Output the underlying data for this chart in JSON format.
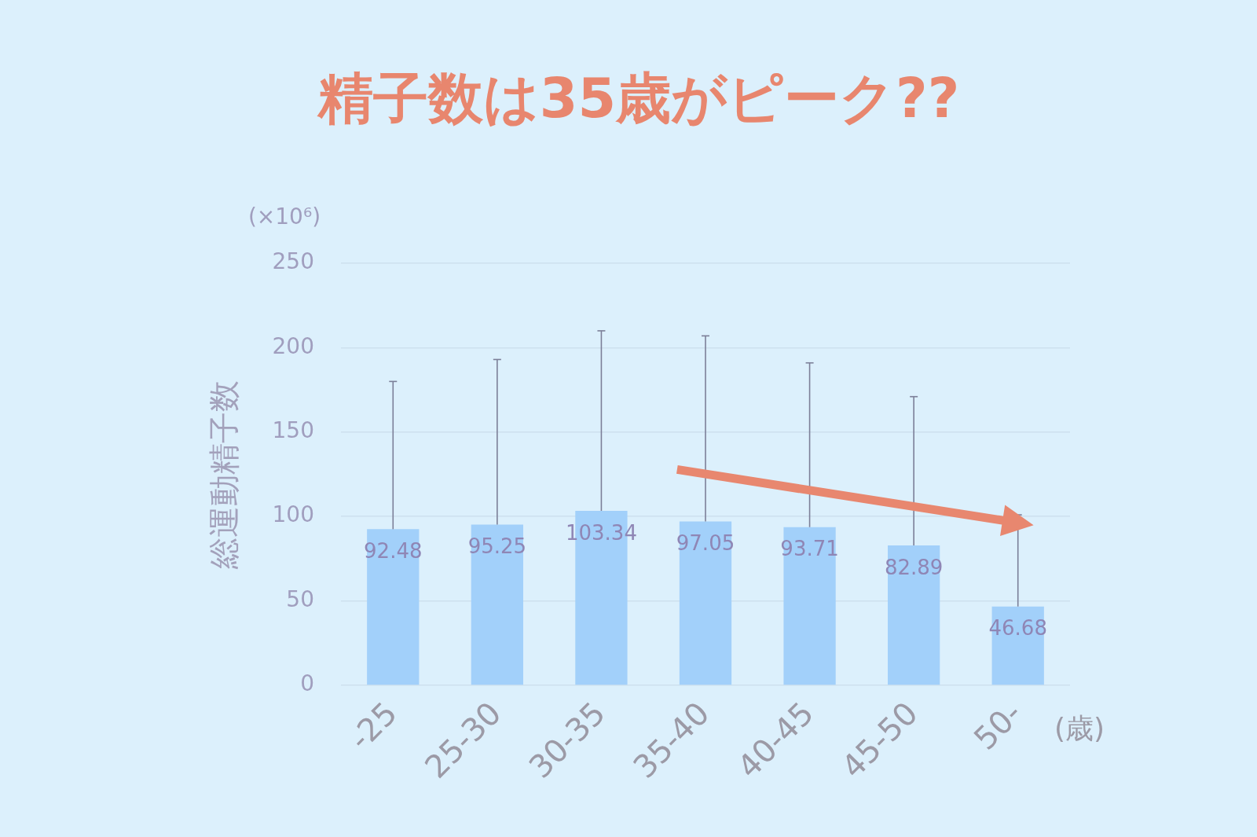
{
  "chart_data": {
    "type": "bar",
    "title": "精子数は35歳がピーク??",
    "ylabel": "総運動精子数",
    "xlabel": "(歳)",
    "annotations": [
      "(×10⁶)"
    ],
    "categories": [
      "-25",
      "25-30",
      "30-35",
      "35-40",
      "40-45",
      "45-50",
      "50-"
    ],
    "values": [
      92.48,
      95.25,
      103.34,
      97.05,
      93.71,
      82.89,
      46.68
    ],
    "errors": [
      [
        92.48,
        180
      ],
      [
        95.25,
        193
      ],
      [
        103.34,
        210
      ],
      [
        97.05,
        207
      ],
      [
        93.71,
        191
      ],
      [
        82.89,
        171
      ],
      [
        46.68,
        101
      ]
    ],
    "color": "#a2d0fa",
    "ylim": [
      0,
      250
    ],
    "yticks": [
      0,
      50,
      100,
      150,
      200,
      250
    ],
    "grid": "y",
    "data_labels": true
  }
}
